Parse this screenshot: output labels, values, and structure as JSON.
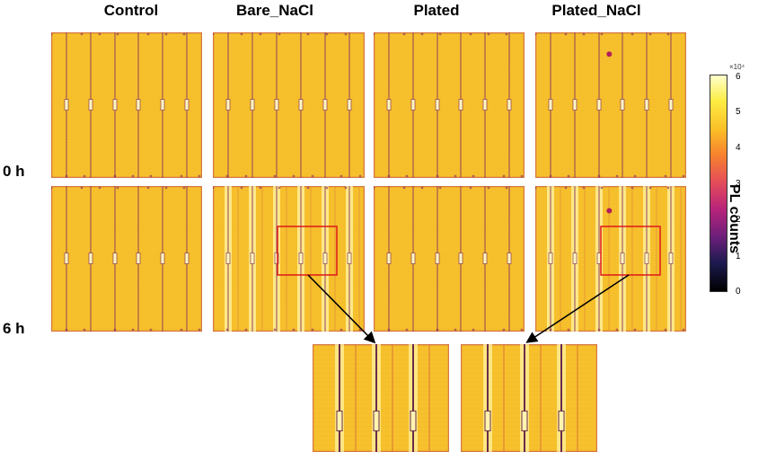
{
  "columns": [
    {
      "title": "Control"
    },
    {
      "title": "Bare_NaCl"
    },
    {
      "title": "Plated"
    },
    {
      "title": "Plated_NaCl"
    }
  ],
  "rows": [
    {
      "label": "0 h"
    },
    {
      "label": "6 h"
    }
  ],
  "colorbar": {
    "label": "PL counts",
    "exponent": "×10⁴",
    "ticks": [
      "6",
      "5",
      "4",
      "3",
      "2",
      "1",
      "0"
    ],
    "colors": [
      "#000000",
      "#1c1a4e",
      "#6b1f7a",
      "#b8247a",
      "#e34b5a",
      "#f7812f",
      "#fbbf27",
      "#fcec42",
      "#ffffcc"
    ]
  },
  "colors": {
    "cell_base": "#f7c12c",
    "cell_dark": "#e07a2e",
    "busbar": "#8a3a5a",
    "highlight_box": "#e01818",
    "arrow": "#000000"
  }
}
